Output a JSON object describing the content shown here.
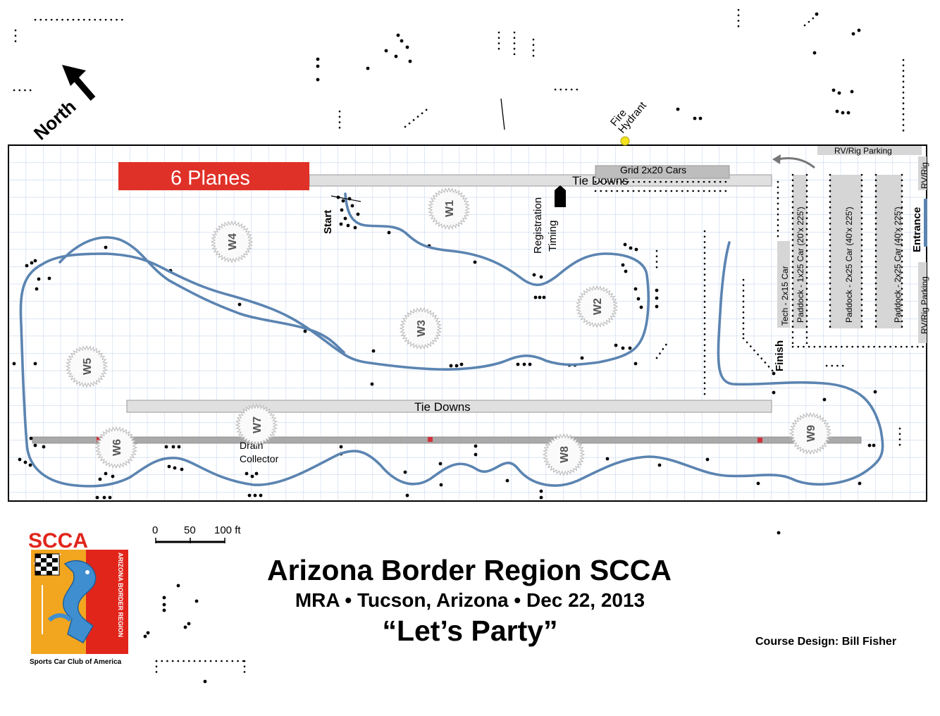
{
  "compass": {
    "label": "North"
  },
  "labels": {
    "planes": "6 Planes",
    "tie_downs_top": "Tie Downs",
    "tie_downs_bottom": "Tie Downs",
    "grid": "Grid 2x20 Cars",
    "fire_hydrant_line1": "Fire",
    "fire_hydrant_line2": "Hydrant",
    "rv_parking_top": "RV/Rig Parking",
    "rv_rig_right": "RV/Rig",
    "rv_parking_right": "RV/Rig Parking",
    "entrance": "Entrance",
    "start": "Start",
    "finish": "Finish",
    "registration": "Registration",
    "timing": "Timing",
    "tech": "Tech - 2x15 Car",
    "paddock_1": "Paddock - 1x25 Car (20'x 225')",
    "paddock_2": "Paddock - 2x25 Car (40'x 225')",
    "paddock_3": "Paddock - 2x25 Car (40'x 225')",
    "drain_line1": "Drain",
    "drain_line2": "Collector"
  },
  "workers": [
    "W1",
    "W2",
    "W3",
    "W4",
    "W5",
    "W6",
    "W7",
    "W8",
    "W9"
  ],
  "scale": {
    "ticks": [
      "0",
      "50",
      "100 ft"
    ]
  },
  "logo": {
    "text": "SCCA",
    "arc_text": "ARIZONA BORDER REGION",
    "footer": "Sports Car Club of America"
  },
  "title": "Arizona Border Region SCCA",
  "subtitle": "MRA • Tucson, Arizona • Dec 22, 2013",
  "event": "“Let’s Party”",
  "credit": "Course Design:  Bill Fisher",
  "colors": {
    "course": "#5b84b1",
    "planes": "#e03128",
    "grid_line": "#b9cde8",
    "paddock": "#d6d6d6",
    "hydrant": "#f4e21c",
    "logo_orange": "#f2a51f",
    "logo_red": "#e1251b",
    "logo_blue": "#3e8ed0"
  }
}
